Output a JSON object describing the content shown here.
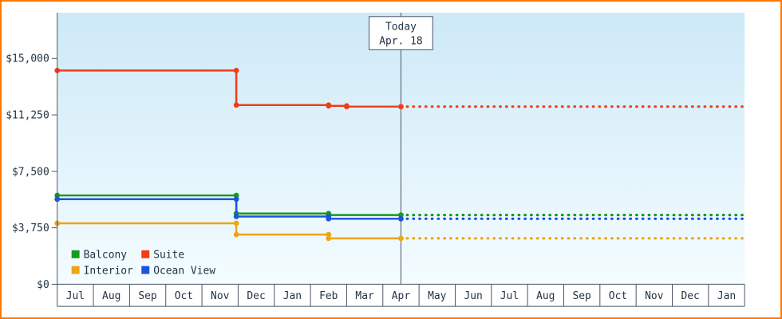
{
  "page": {
    "border_color": "#ff7700",
    "background": "#ffffff"
  },
  "chart_data": {
    "type": "line",
    "subtype": "step-price-history",
    "title": "",
    "x_months": [
      "Jul",
      "Aug",
      "Sep",
      "Oct",
      "Nov",
      "Dec",
      "Jan",
      "Feb",
      "Mar",
      "Apr",
      "May",
      "Jun",
      "Jul",
      "Aug",
      "Sep",
      "Oct",
      "Nov",
      "Dec",
      "Jan"
    ],
    "ylim": [
      0,
      15000
    ],
    "y_ticks": [
      {
        "value": 15000,
        "label": "$15,000"
      },
      {
        "value": 11250,
        "label": "$11,250"
      },
      {
        "value": 7500,
        "label": "$7,500"
      },
      {
        "value": 3750,
        "label": "$3,750"
      },
      {
        "value": 0,
        "label": "$0"
      }
    ],
    "today": {
      "label_line1": "Today",
      "label_line2": "Apr. 18",
      "month_frac": 9.5
    },
    "series": [
      {
        "name": "Suite",
        "color": "#f23c17",
        "points": [
          [
            0,
            14200
          ],
          [
            4.95,
            14200
          ],
          [
            4.95,
            11900
          ],
          [
            7.5,
            11900
          ],
          [
            7.5,
            11850
          ],
          [
            8.0,
            11850
          ],
          [
            8.0,
            11800
          ],
          [
            9.5,
            11800
          ]
        ],
        "forecast_value": 11800
      },
      {
        "name": "Balcony",
        "color": "#17991d",
        "points": [
          [
            0,
            5900
          ],
          [
            4.95,
            5900
          ],
          [
            4.95,
            4700
          ],
          [
            7.5,
            4700
          ],
          [
            7.5,
            4600
          ],
          [
            9.5,
            4600
          ]
        ],
        "forecast_value": 4600
      },
      {
        "name": "Ocean View",
        "color": "#1e52e0",
        "points": [
          [
            0,
            5650
          ],
          [
            4.95,
            5650
          ],
          [
            4.95,
            4500
          ],
          [
            7.5,
            4500
          ],
          [
            7.5,
            4350
          ],
          [
            9.5,
            4350
          ]
        ],
        "forecast_value": 4350
      },
      {
        "name": "Interior",
        "color": "#eea414",
        "points": [
          [
            0,
            4050
          ],
          [
            4.95,
            4050
          ],
          [
            4.95,
            3300
          ],
          [
            7.5,
            3300
          ],
          [
            7.5,
            3050
          ],
          [
            9.5,
            3050
          ]
        ],
        "forecast_value": 3050
      }
    ],
    "legend_rows": [
      [
        "Balcony",
        "Suite"
      ],
      [
        "Interior",
        "Ocean View"
      ]
    ],
    "plot": {
      "bg_top": "#cde9f7",
      "bg_bottom": "#f4fcff"
    },
    "colors": {
      "axis": "#4a5568",
      "text": "#223344"
    }
  }
}
